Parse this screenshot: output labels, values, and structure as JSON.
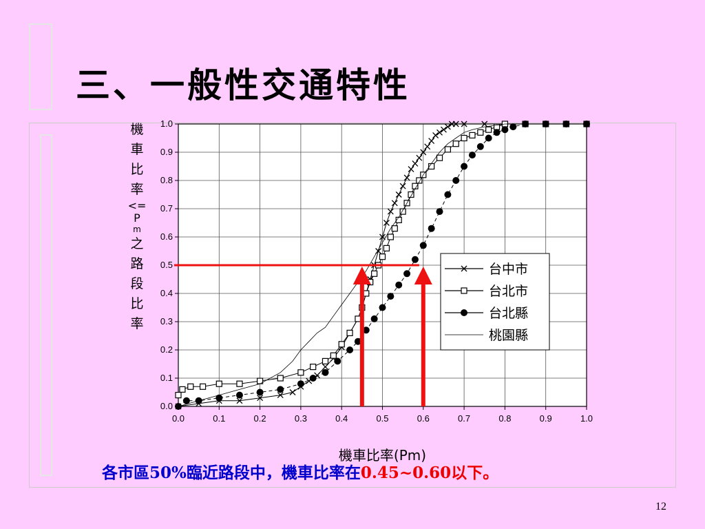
{
  "slide": {
    "title": "三、一般性交通特性",
    "caption_prefix": "各市區",
    "caption_pct": "50%",
    "caption_mid": "臨近路段中，機車比率在",
    "caption_range": "0.45~0.60",
    "caption_suffix": "以下。",
    "page_number": "12"
  },
  "chart_data": {
    "type": "line",
    "xlabel": "機車比率(Pm)",
    "ylabel_chars": [
      "機",
      "車",
      "比",
      "率",
      "<=",
      "P",
      "m",
      "之",
      "路",
      "段",
      "比",
      "率"
    ],
    "xlim": [
      0,
      1.0
    ],
    "ylim": [
      0,
      1.0
    ],
    "xticks": [
      "0.0",
      "0.1",
      "0.2",
      "0.3",
      "0.4",
      "0.5",
      "0.6",
      "0.7",
      "0.8",
      "0.9",
      "1.0"
    ],
    "yticks": [
      "0.0",
      "0.1",
      "0.2",
      "0.3",
      "0.4",
      "0.5",
      "0.6",
      "0.7",
      "0.8",
      "0.9",
      "1.0"
    ],
    "grid": true,
    "legend_position": "right-middle",
    "series": [
      {
        "name": "台中市",
        "marker": "x",
        "x": [
          0.0,
          0.05,
          0.1,
          0.15,
          0.2,
          0.25,
          0.28,
          0.3,
          0.32,
          0.34,
          0.36,
          0.38,
          0.4,
          0.42,
          0.44,
          0.45,
          0.46,
          0.47,
          0.48,
          0.49,
          0.5,
          0.51,
          0.52,
          0.53,
          0.54,
          0.55,
          0.56,
          0.57,
          0.58,
          0.59,
          0.6,
          0.61,
          0.62,
          0.63,
          0.64,
          0.65,
          0.66,
          0.67,
          0.68,
          0.7,
          0.75,
          0.8,
          0.85,
          0.9,
          0.95,
          1.0
        ],
        "y": [
          0.0,
          0.01,
          0.02,
          0.02,
          0.03,
          0.04,
          0.05,
          0.07,
          0.09,
          0.11,
          0.14,
          0.17,
          0.21,
          0.26,
          0.31,
          0.35,
          0.4,
          0.45,
          0.5,
          0.55,
          0.6,
          0.65,
          0.69,
          0.72,
          0.75,
          0.78,
          0.81,
          0.84,
          0.86,
          0.88,
          0.9,
          0.92,
          0.94,
          0.96,
          0.97,
          0.98,
          0.99,
          1.0,
          1.0,
          1.0,
          1.0,
          1.0,
          1.0,
          1.0,
          1.0,
          1.0
        ]
      },
      {
        "name": "台北市",
        "marker": "square",
        "x": [
          0.0,
          0.01,
          0.03,
          0.06,
          0.1,
          0.15,
          0.2,
          0.25,
          0.3,
          0.33,
          0.36,
          0.38,
          0.4,
          0.42,
          0.44,
          0.45,
          0.46,
          0.47,
          0.48,
          0.49,
          0.5,
          0.51,
          0.52,
          0.53,
          0.54,
          0.55,
          0.56,
          0.57,
          0.58,
          0.59,
          0.6,
          0.62,
          0.64,
          0.66,
          0.68,
          0.7,
          0.72,
          0.74,
          0.76,
          0.78,
          0.8,
          0.85,
          0.9,
          0.95,
          1.0
        ],
        "y": [
          0.04,
          0.06,
          0.07,
          0.07,
          0.08,
          0.08,
          0.09,
          0.1,
          0.12,
          0.14,
          0.16,
          0.18,
          0.22,
          0.26,
          0.31,
          0.35,
          0.4,
          0.44,
          0.47,
          0.5,
          0.53,
          0.56,
          0.6,
          0.63,
          0.66,
          0.69,
          0.72,
          0.75,
          0.78,
          0.8,
          0.82,
          0.85,
          0.88,
          0.91,
          0.93,
          0.95,
          0.96,
          0.97,
          0.98,
          0.99,
          1.0,
          1.0,
          1.0,
          1.0,
          1.0
        ]
      },
      {
        "name": "台北縣",
        "marker": "circle",
        "x": [
          0.0,
          0.02,
          0.05,
          0.1,
          0.15,
          0.2,
          0.25,
          0.3,
          0.33,
          0.36,
          0.39,
          0.42,
          0.44,
          0.46,
          0.48,
          0.5,
          0.52,
          0.54,
          0.56,
          0.58,
          0.6,
          0.62,
          0.64,
          0.66,
          0.68,
          0.7,
          0.72,
          0.74,
          0.76,
          0.78,
          0.8,
          0.82,
          0.85,
          0.9,
          0.95,
          1.0
        ],
        "y": [
          0.0,
          0.02,
          0.02,
          0.03,
          0.04,
          0.05,
          0.06,
          0.08,
          0.1,
          0.12,
          0.16,
          0.2,
          0.23,
          0.27,
          0.31,
          0.35,
          0.39,
          0.43,
          0.47,
          0.52,
          0.57,
          0.63,
          0.69,
          0.75,
          0.8,
          0.85,
          0.89,
          0.92,
          0.95,
          0.97,
          0.98,
          0.99,
          1.0,
          1.0,
          1.0,
          1.0
        ]
      },
      {
        "name": "桃園縣",
        "marker": "none",
        "x": [
          0.0,
          0.05,
          0.1,
          0.15,
          0.2,
          0.25,
          0.28,
          0.3,
          0.32,
          0.34,
          0.36,
          0.38,
          0.4,
          0.42,
          0.44,
          0.46,
          0.48,
          0.5,
          0.52,
          0.54,
          0.56,
          0.58,
          0.6,
          0.62,
          0.64,
          0.66,
          0.68,
          0.7,
          0.72,
          0.75,
          0.8,
          0.9,
          1.0
        ],
        "y": [
          0.0,
          0.02,
          0.04,
          0.06,
          0.08,
          0.12,
          0.16,
          0.2,
          0.23,
          0.26,
          0.28,
          0.32,
          0.36,
          0.4,
          0.44,
          0.48,
          0.53,
          0.58,
          0.63,
          0.67,
          0.72,
          0.77,
          0.82,
          0.86,
          0.9,
          0.93,
          0.95,
          0.97,
          0.98,
          0.99,
          1.0,
          1.0,
          1.0
        ]
      }
    ],
    "annotations": {
      "hline_y": 0.5,
      "hline_x_range": [
        0,
        0.59
      ],
      "arrows_x": [
        0.45,
        0.6
      ],
      "color": "#ee1111"
    }
  }
}
